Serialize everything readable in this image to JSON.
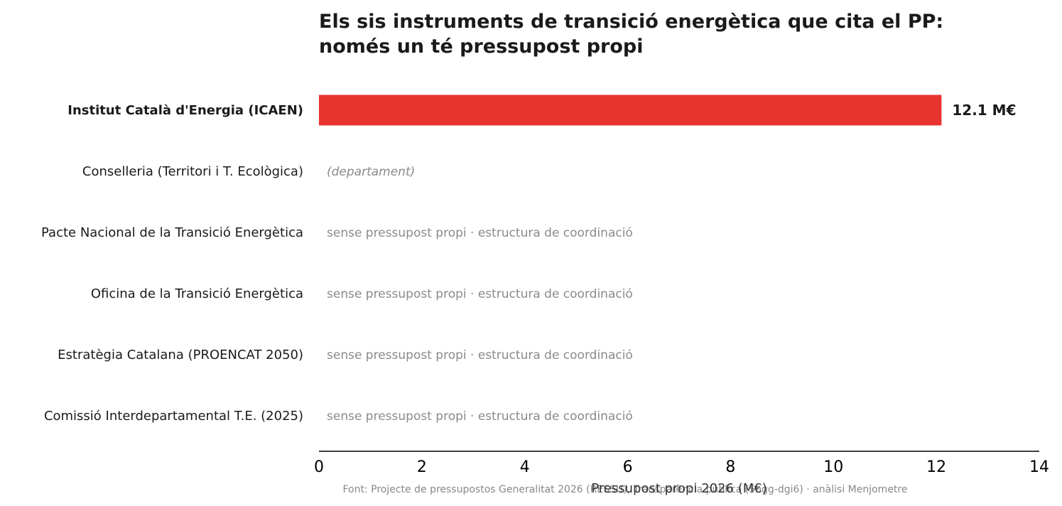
{
  "chart_data": {
    "type": "bar",
    "orientation": "horizontal",
    "title_lines": [
      "Els sis instruments de transició energètica que cita el PP:",
      "només un té pressupost propi"
    ],
    "categories": [
      "Institut Català d'Energia (ICAEN)",
      "Conselleria (Territori i T. Ecològica)",
      "Pacte Nacional de la Transició Energètica",
      "Oficina de la Transició Energètica",
      "Estratègia Catalana (PROENCAT 2050)",
      "Comissió Interdepartamental T.E. (2025)"
    ],
    "values": [
      12.1,
      null,
      null,
      null,
      null,
      null
    ],
    "value_labels": [
      "12.1 M€",
      "",
      "",
      "",
      "",
      ""
    ],
    "annotations": [
      "",
      "(departament)",
      "sense pressupost propi · estructura de coordinació",
      "sense pressupost propi · estructura de coordinació",
      "sense pressupost propi · estructura de coordinació",
      "sense pressupost propi · estructura de coordinació"
    ],
    "highlight_category": "Institut Català d'Energia (ICAEN)",
    "bar_color": "#e8342f",
    "xlabel": "Pressupost propi 2026 (M€)",
    "xlim": [
      0,
      14
    ],
    "xticks": [
      0,
      2,
      4,
      6,
      8,
      10,
      12,
      14
    ],
    "grid": false
  },
  "source": "Font: Projecte de pressupostos Generalitat 2026 (RESSU), Transparència pública (5bgg-dgi6) · anàlisi Menjometre"
}
